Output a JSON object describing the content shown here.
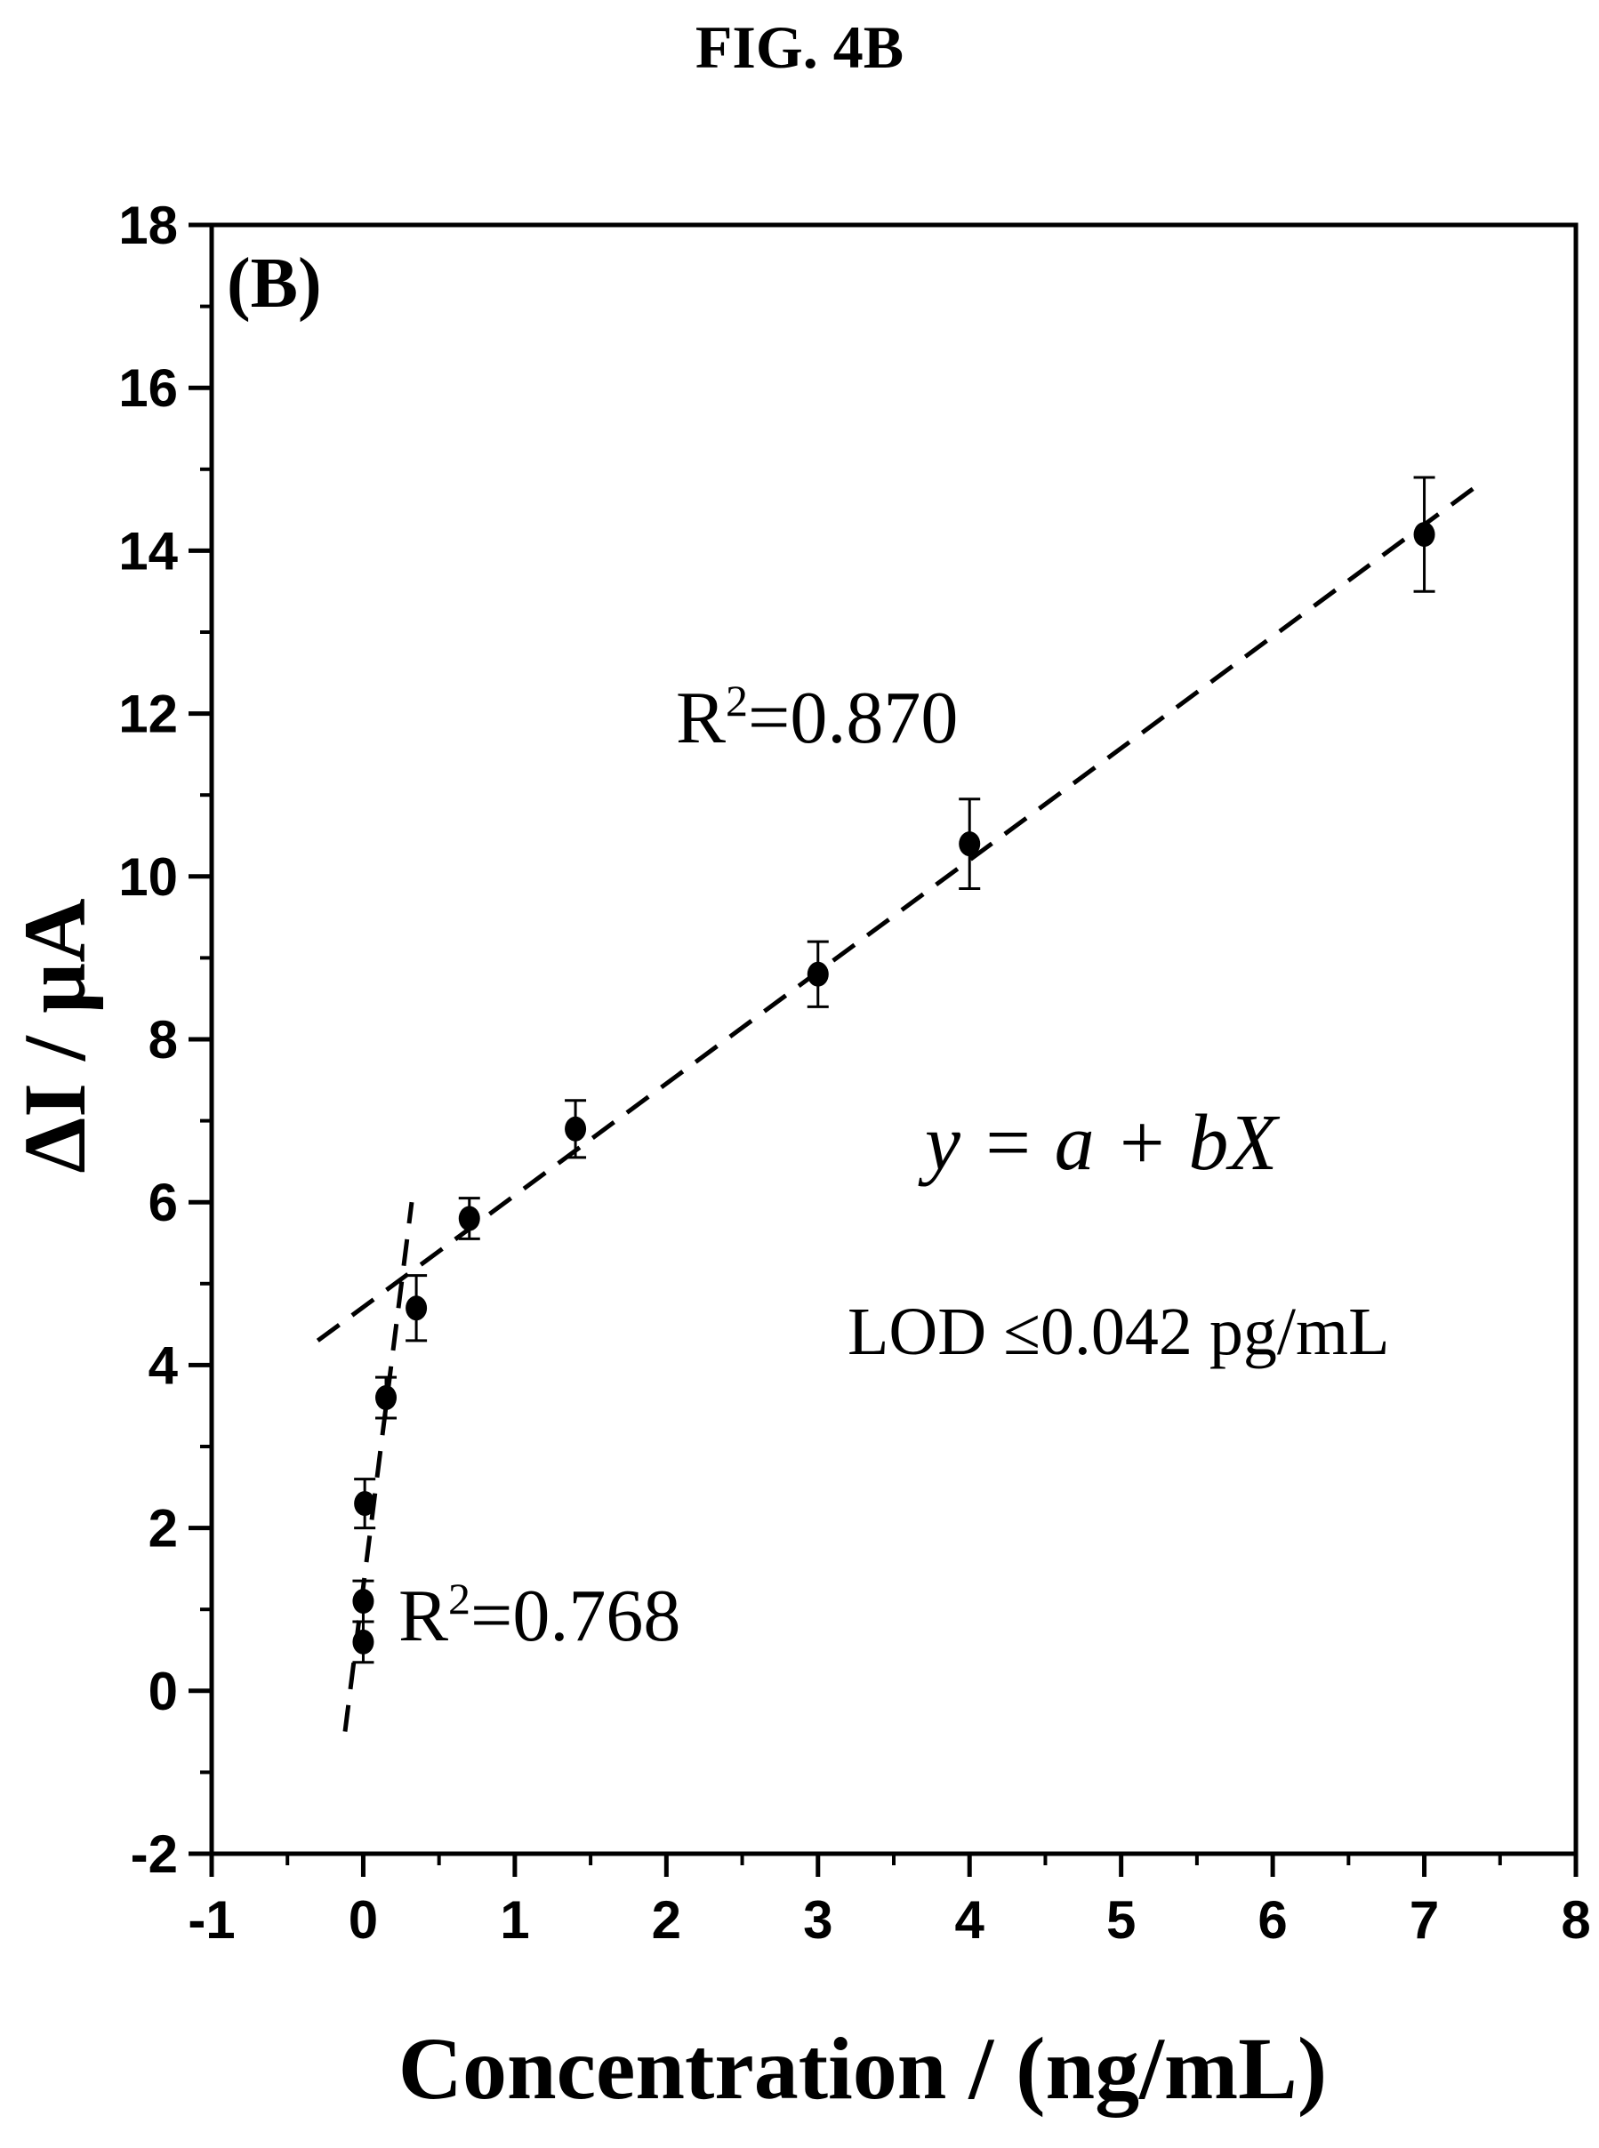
{
  "figure_title": "FIG. 4B",
  "chart_data": {
    "type": "scatter",
    "panel_label": "(B)",
    "xlabel": "Concentration / (ng/mL)",
    "ylabel": "ΔI / µA",
    "xlim": [
      -1,
      8
    ],
    "ylim": [
      -2,
      18
    ],
    "xticks": [
      -1,
      0,
      1,
      2,
      3,
      4,
      5,
      6,
      7,
      8
    ],
    "yticks": [
      -2,
      0,
      2,
      4,
      6,
      8,
      10,
      12,
      14,
      16,
      18
    ],
    "grid": false,
    "series": [
      {
        "points": [
          {
            "x": 0.0,
            "y": 0.6,
            "err": 0.25
          },
          {
            "x": 0.0,
            "y": 1.1,
            "err": 0.25
          },
          {
            "x": 0.01,
            "y": 2.3,
            "err": 0.3
          },
          {
            "x": 0.15,
            "y": 3.6,
            "err": 0.25
          },
          {
            "x": 0.35,
            "y": 4.7,
            "err": 0.4
          },
          {
            "x": 0.7,
            "y": 5.8,
            "err": 0.25
          },
          {
            "x": 1.4,
            "y": 6.9,
            "err": 0.35
          },
          {
            "x": 3.0,
            "y": 8.8,
            "err": 0.4
          },
          {
            "x": 4.0,
            "y": 10.4,
            "err": 0.55
          },
          {
            "x": 7.0,
            "y": 14.2,
            "err": 0.7
          }
        ]
      }
    ],
    "fit_lines": [
      {
        "x1": -0.12,
        "y1": -0.5,
        "x2": 0.32,
        "y2": 6.0,
        "r2_label": "R²=0.768"
      },
      {
        "x1": -0.3,
        "y1": 4.3,
        "x2": 7.35,
        "y2": 14.8,
        "r2_label": "R²=0.870"
      }
    ],
    "annotations": {
      "equation": "y = a + bX",
      "lod": "LOD ≤0.042 pg/mL",
      "r2_low_base": "R",
      "r2_low_sup": "2",
      "r2_low_rest": "=0.768",
      "r2_high_base": "R",
      "r2_high_sup": "2",
      "r2_high_rest": "=0.870"
    }
  }
}
